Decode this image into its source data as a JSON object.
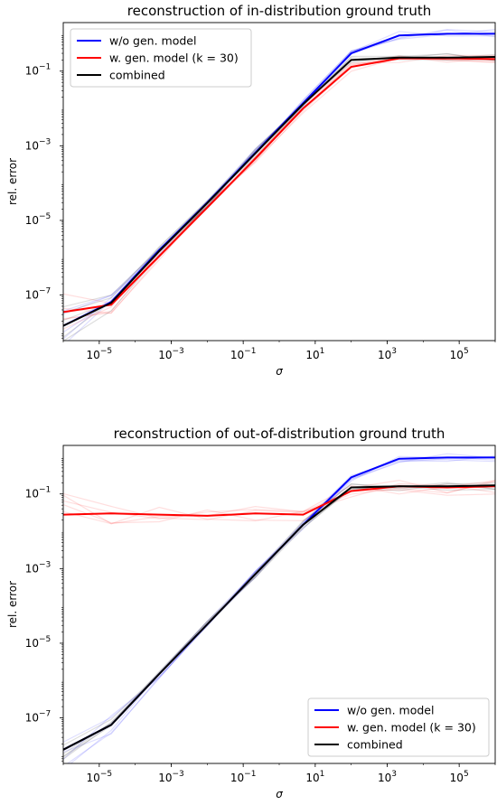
{
  "chart_data": [
    {
      "type": "line",
      "title": "reconstruction of in-distribution ground truth",
      "xlabel": "σ",
      "ylabel": "rel. error",
      "xscale": "log",
      "yscale": "log",
      "xlim": [
        1e-06,
        1000000.0
      ],
      "ylim": [
        6e-09,
        2
      ],
      "xticks": [
        {
          "value": 1e-05,
          "base": "10",
          "exp": "−5"
        },
        {
          "value": 0.001,
          "base": "10",
          "exp": "−3"
        },
        {
          "value": 0.1,
          "base": "10",
          "exp": "−1"
        },
        {
          "value": 10.0,
          "base": "10",
          "exp": "1"
        },
        {
          "value": 1000.0,
          "base": "10",
          "exp": "3"
        },
        {
          "value": 100000.0,
          "base": "10",
          "exp": "5"
        }
      ],
      "yticks": [
        {
          "value": 1e-07,
          "base": "10",
          "exp": "−7"
        },
        {
          "value": 1e-05,
          "base": "10",
          "exp": "−5"
        },
        {
          "value": 0.001,
          "base": "10",
          "exp": "−3"
        },
        {
          "value": 0.1,
          "base": "10",
          "exp": "−1"
        }
      ],
      "legend_position": "upper-left",
      "x": [
        1e-06,
        2.15e-05,
        0.000464,
        0.01,
        0.215,
        4.64,
        100,
        2150,
        46400,
        1000000
      ],
      "series": [
        {
          "name": "w/o gen. model",
          "color": "#0000ff",
          "values": [
            1.5e-08,
            6.5e-08,
            1.6e-06,
            3e-05,
            0.00065,
            0.014,
            0.3,
            0.9,
            1.0,
            1.0
          ]
        },
        {
          "name": "w. gen. model (k = 30)",
          "color": "#ff0000",
          "values": [
            3.5e-08,
            5.5e-08,
            1.1e-06,
            2.2e-05,
            0.00045,
            0.01,
            0.13,
            0.22,
            0.22,
            0.21
          ]
        },
        {
          "name": "combined",
          "color": "#000000",
          "values": [
            1.5e-08,
            6.2e-08,
            1.5e-06,
            2.9e-05,
            0.00062,
            0.013,
            0.2,
            0.23,
            0.23,
            0.24
          ]
        }
      ]
    },
    {
      "type": "line",
      "title": "reconstruction of out-of-distribution ground truth",
      "xlabel": "σ",
      "ylabel": "rel. error",
      "xscale": "log",
      "yscale": "log",
      "xlim": [
        1e-06,
        1000000.0
      ],
      "ylim": [
        6e-09,
        2
      ],
      "xticks": [
        {
          "value": 1e-05,
          "base": "10",
          "exp": "−5"
        },
        {
          "value": 0.001,
          "base": "10",
          "exp": "−3"
        },
        {
          "value": 0.1,
          "base": "10",
          "exp": "−1"
        },
        {
          "value": 10.0,
          "base": "10",
          "exp": "1"
        },
        {
          "value": 1000.0,
          "base": "10",
          "exp": "3"
        },
        {
          "value": 100000.0,
          "base": "10",
          "exp": "5"
        }
      ],
      "yticks": [
        {
          "value": 1e-07,
          "base": "10",
          "exp": "−7"
        },
        {
          "value": 1e-05,
          "base": "10",
          "exp": "−5"
        },
        {
          "value": 0.001,
          "base": "10",
          "exp": "−3"
        },
        {
          "value": 0.1,
          "base": "10",
          "exp": "−1"
        }
      ],
      "legend_position": "lower-right",
      "x": [
        1e-06,
        2.15e-05,
        0.000464,
        0.01,
        0.215,
        4.64,
        100,
        2150,
        46400,
        1000000
      ],
      "series": [
        {
          "name": "w/o gen. model",
          "color": "#0000ff",
          "values": [
            1.4e-08,
            6.5e-08,
            1.5e-06,
            3.2e-05,
            0.0007,
            0.015,
            0.28,
            0.88,
            0.95,
            0.95
          ]
        },
        {
          "name": "w. gen. model (k = 30)",
          "color": "#ff0000",
          "values": [
            0.028,
            0.03,
            0.028,
            0.026,
            0.03,
            0.028,
            0.12,
            0.16,
            0.15,
            0.16
          ]
        },
        {
          "name": "combined",
          "color": "#000000",
          "values": [
            1.4e-08,
            6.5e-08,
            1.5e-06,
            3.2e-05,
            0.0007,
            0.015,
            0.15,
            0.16,
            0.16,
            0.17
          ]
        }
      ]
    }
  ]
}
